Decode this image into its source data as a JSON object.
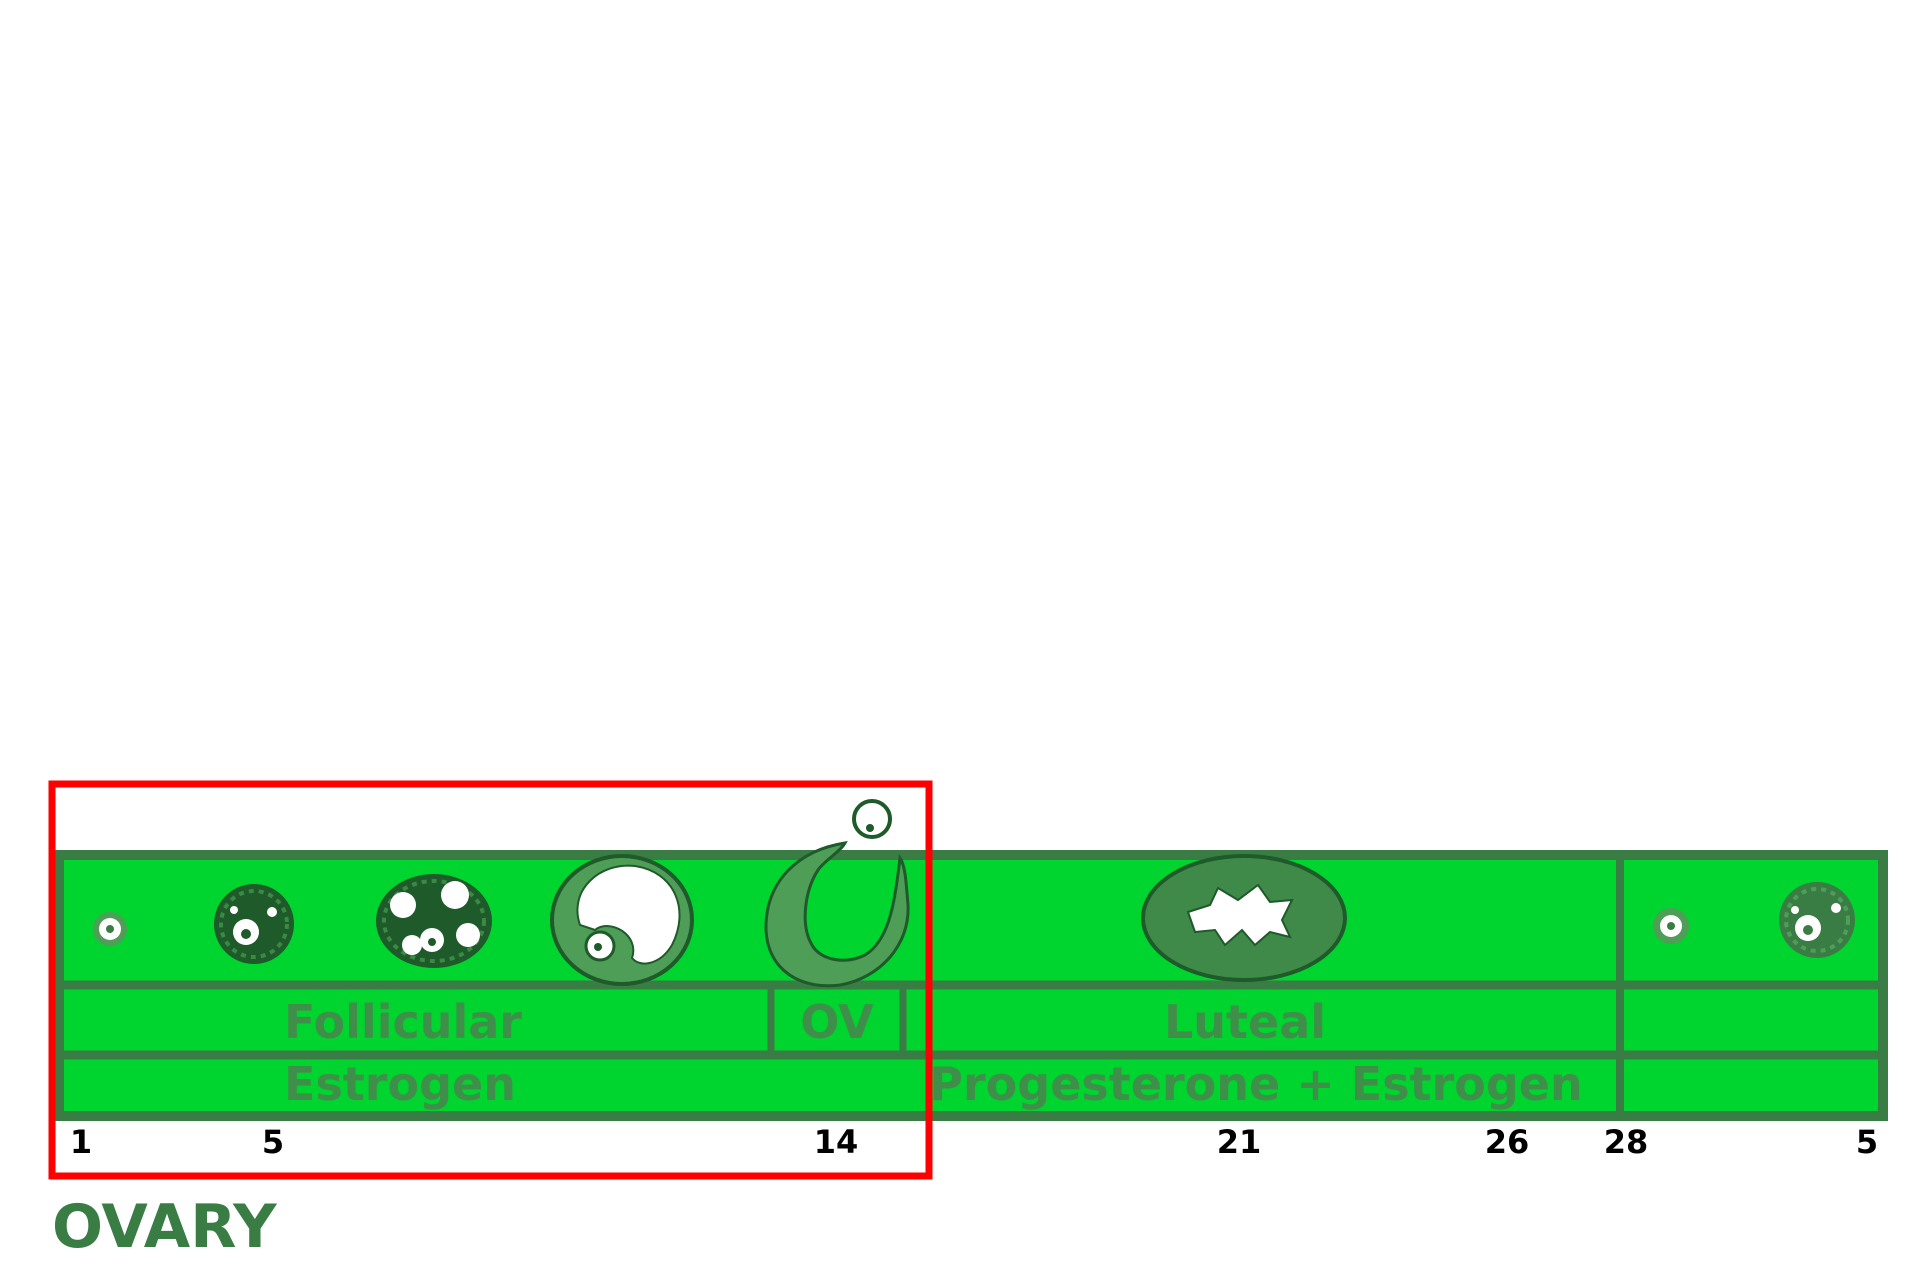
{
  "title": "OVARY",
  "phases": {
    "follicular": "Follicular",
    "ovulation": "OV",
    "luteal": "Luteal"
  },
  "hormones": {
    "first": "Estrogen",
    "second": "Progesterone + Estrogen"
  },
  "days": [
    "1",
    "5",
    "14",
    "21",
    "26",
    "28",
    "5"
  ],
  "highlight": "follicular phase through ovulation (days 1–14)",
  "colors": {
    "band": "#00d42e",
    "border": "#3a7d44",
    "follicle_dark": "#1e5a2a",
    "follicle_mid": "#4f9e58",
    "highlight_box": "#ff0000",
    "title": "#3a7d44"
  }
}
